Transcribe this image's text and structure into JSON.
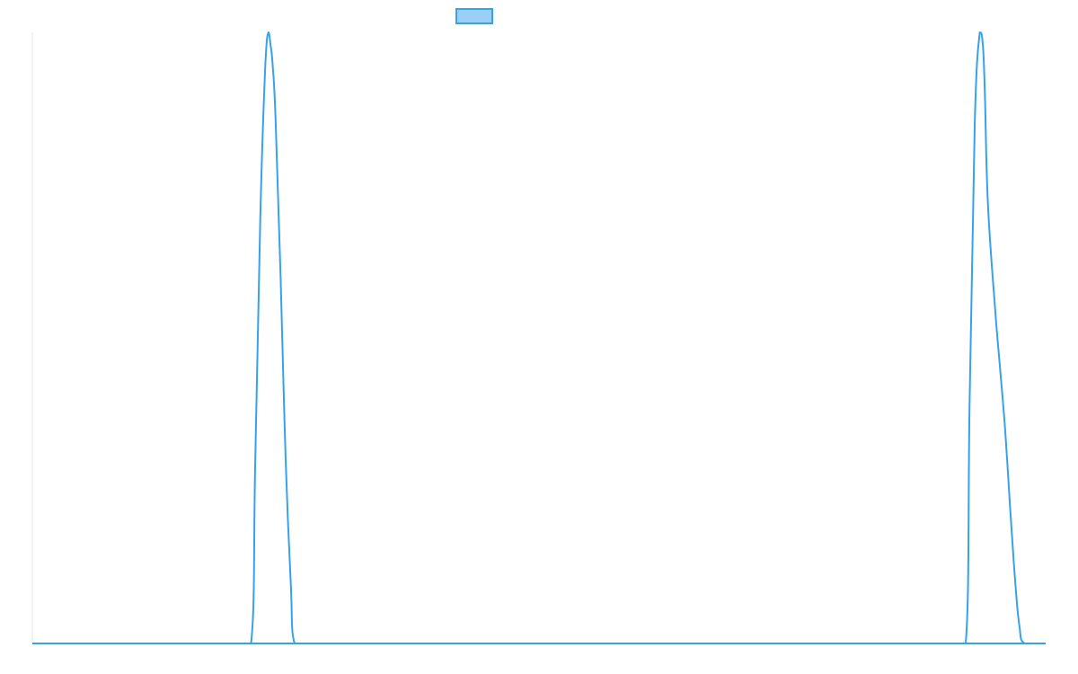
{
  "chart_data": {
    "type": "line",
    "title": "",
    "xlabel": "",
    "ylabel": "",
    "xlim": [
      0,
      1000
    ],
    "ylim": [
      0,
      1
    ],
    "grid": false,
    "legend": {
      "position": "top-center",
      "entries": [
        {
          "series_index": 0,
          "label": ""
        }
      ]
    },
    "series": [
      {
        "color": "#36a2eb",
        "fill_color": "#9ad0f5",
        "x": [
          0,
          215.8,
          220,
          225,
          230,
          233,
          235,
          237,
          240,
          245,
          250,
          255,
          258.9,
          1000
        ],
        "y": [
          0,
          0,
          0.3,
          0.7,
          0.95,
          1.0,
          0.98,
          0.95,
          0.86,
          0.6,
          0.3,
          0.1,
          0,
          0
        ]
      },
      {
        "color": "#36a2eb",
        "fill_color": "#9ad0f5",
        "x": [
          0,
          921.1,
          925,
          930,
          935,
          938,
          940,
          943,
          950,
          955,
          960,
          965,
          970,
          974,
          979.2,
          1000
        ],
        "y": [
          0,
          0,
          0.4,
          0.85,
          1.0,
          0.98,
          0.9,
          0.72,
          0.55,
          0.45,
          0.35,
          0.22,
          0.1,
          0.03,
          0,
          0
        ]
      }
    ]
  }
}
